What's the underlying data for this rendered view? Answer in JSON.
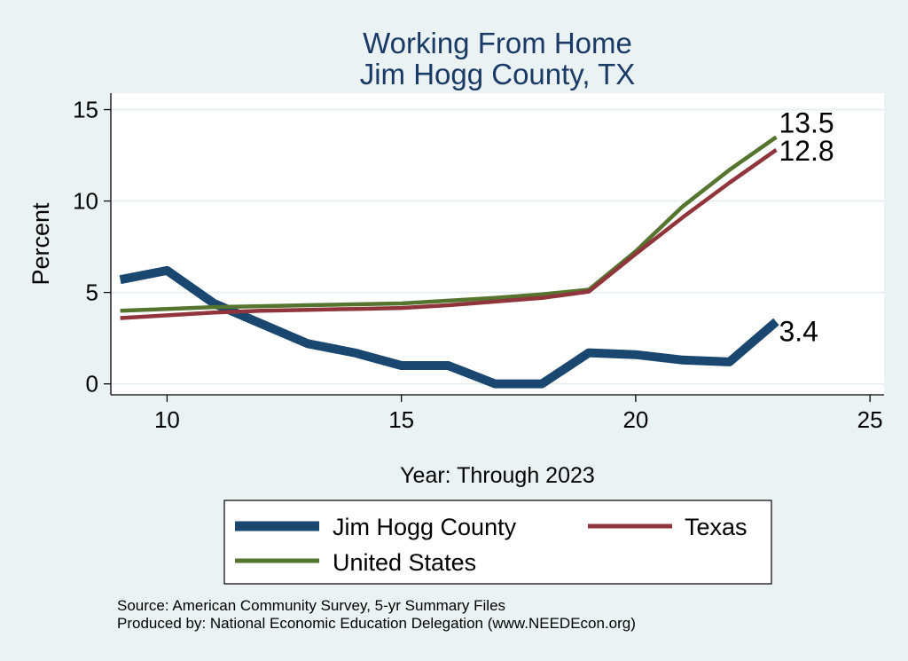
{
  "chart_data": {
    "type": "line",
    "title": [
      "Working From Home",
      "Jim Hogg County, TX"
    ],
    "xlabel": "Year: Through 2023",
    "ylabel": "Percent",
    "xlim": [
      8.8,
      25.3
    ],
    "ylim": [
      -0.6,
      15.9
    ],
    "xticks": [
      10,
      15,
      20,
      25
    ],
    "yticks": [
      0,
      5,
      10,
      15
    ],
    "grid": true,
    "legend_position": "bottom",
    "series": [
      {
        "name": "Jim Hogg County",
        "color": "#1a476f",
        "x": [
          9,
          10,
          11,
          12,
          13,
          14,
          15,
          16,
          17,
          18,
          19,
          20,
          21,
          22,
          23
        ],
        "y": [
          5.7,
          6.2,
          4.4,
          3.3,
          2.2,
          1.7,
          1.0,
          1.0,
          0.0,
          0.0,
          1.7,
          1.6,
          1.3,
          1.2,
          3.4
        ],
        "end_label": "3.4"
      },
      {
        "name": "Texas",
        "color": "#90353b",
        "x": [
          9,
          10,
          11,
          12,
          13,
          14,
          15,
          16,
          17,
          18,
          19,
          20,
          21,
          22,
          23
        ],
        "y": [
          3.6,
          3.75,
          3.9,
          4.0,
          4.05,
          4.1,
          4.15,
          4.3,
          4.5,
          4.7,
          5.05,
          7.1,
          9.1,
          11.0,
          12.8
        ],
        "end_label": "12.8"
      },
      {
        "name": "United States",
        "color": "#55752f",
        "x": [
          9,
          10,
          11,
          12,
          13,
          14,
          15,
          16,
          17,
          18,
          19,
          20,
          21,
          22,
          23
        ],
        "y": [
          4.0,
          4.1,
          4.2,
          4.25,
          4.3,
          4.35,
          4.4,
          4.55,
          4.7,
          4.9,
          5.15,
          7.25,
          9.7,
          11.7,
          13.5
        ],
        "end_label": "13.5"
      }
    ],
    "source_lines": [
      "Source: American Community Survey, 5-yr Summary Files",
      "Produced by: National Economic Education Delegation (www.NEEDEcon.org)"
    ]
  }
}
